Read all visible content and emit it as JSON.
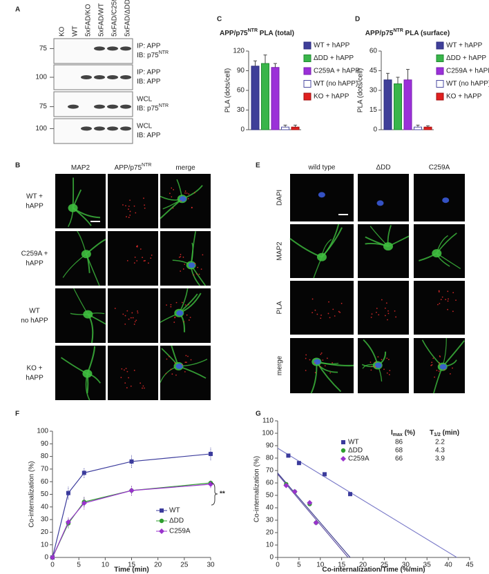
{
  "panel_labels": [
    "A",
    "B",
    "C",
    "D",
    "E",
    "F",
    "G"
  ],
  "blot": {
    "lanes": [
      "KO",
      "WT",
      "5xFAD/KO",
      "5xFAD/WT",
      "5xFAD/C259A",
      "5xFAD/ΔDD"
    ],
    "rows": [
      {
        "mw": 75,
        "line1": "IP: APP",
        "line2": [
          "IB: p75",
          "NTR"
        ]
      },
      {
        "mw": 100,
        "line1": "IP: APP",
        "line2": [
          "IB: APP"
        ]
      },
      {
        "mw": 75,
        "line1": "WCL",
        "line2": [
          "IB: p75",
          "NTR"
        ]
      },
      {
        "mw": 100,
        "line1": "WCL",
        "line2": [
          "IB: APP"
        ]
      }
    ]
  },
  "microscopy_B": {
    "headers": [
      [
        "MAP2"
      ],
      [
        "APP/p75",
        "NTR"
      ],
      [
        "merge"
      ]
    ],
    "rows": [
      [
        "WT +",
        "hAPP"
      ],
      [
        "C259A +",
        "hAPP"
      ],
      [
        "WT",
        "no hAPP"
      ],
      [
        "KO +",
        "hAPP"
      ]
    ]
  },
  "microscopy_E": {
    "headers": [
      "wild type",
      "ΔDD",
      "C259A"
    ],
    "rows": [
      "DAPI",
      "MAP2",
      "PLA",
      "merge"
    ]
  },
  "chart_data": [
    {
      "type": "bar",
      "title": [
        "APP/p75",
        "NTR",
        " PLA (total)"
      ],
      "ylabel": "PLA (dots/cell)",
      "categories": [
        "WT + hAPP",
        "ΔDD + hAPP",
        "C259A + hAPP",
        "WT (no hAPP)",
        "KO + hAPP"
      ],
      "values": [
        97,
        101,
        95,
        4,
        4
      ],
      "errors": [
        8,
        13,
        6,
        3,
        3
      ],
      "colors": [
        "#3f3f99",
        "#39b54a",
        "#9b30d8",
        "#ffffff",
        "#e0201f"
      ],
      "edgecolors": [
        "#2b2b80",
        "#1f8a30",
        "#7a20b0",
        "#4a4aa0",
        "#a01010"
      ],
      "ylim": [
        0,
        120
      ],
      "yticks": [
        0,
        30,
        60,
        90,
        120
      ]
    },
    {
      "type": "bar",
      "title": [
        "APP/p75",
        "NTR",
        " PLA (surface)"
      ],
      "ylabel": "PLA (dots/cell)",
      "categories": [
        "WT + hAPP",
        "ΔDD + hAPP",
        "C259A + hAPP",
        "WT (no hAPP)",
        "KO + hAPP"
      ],
      "values": [
        38,
        35,
        38,
        2,
        2
      ],
      "errors": [
        5,
        5,
        8,
        1.5,
        1
      ],
      "colors": [
        "#3f3f99",
        "#39b54a",
        "#9b30d8",
        "#ffffff",
        "#e0201f"
      ],
      "edgecolors": [
        "#2b2b80",
        "#1f8a30",
        "#7a20b0",
        "#4a4aa0",
        "#a01010"
      ],
      "ylim": [
        0,
        60
      ],
      "yticks": [
        0,
        15,
        30,
        45,
        60
      ]
    },
    {
      "type": "line",
      "xlabel": "Time (min)",
      "ylabel": "Co-internalization (%)",
      "x": [
        0,
        3,
        6,
        15,
        30
      ],
      "series": [
        {
          "name": "WT",
          "color": "#3b3b9c",
          "marker": "square",
          "values": [
            0,
            51,
            67,
            76,
            82
          ],
          "errors": [
            0,
            5,
            4,
            5,
            5
          ]
        },
        {
          "name": "ΔDD",
          "color": "#2e9e2e",
          "marker": "circle",
          "values": [
            0,
            27,
            44,
            53,
            59
          ],
          "errors": [
            0,
            4,
            4,
            4,
            2
          ]
        },
        {
          "name": "C259A",
          "color": "#9933cc",
          "marker": "diamond",
          "values": [
            0,
            28,
            43,
            53,
            58
          ],
          "errors": [
            0,
            4,
            5,
            4,
            3
          ]
        }
      ],
      "xlim": [
        0,
        30
      ],
      "xticks": [
        0,
        5,
        10,
        15,
        20,
        25,
        30
      ],
      "ylim": [
        0,
        100
      ],
      "yticks": [
        0,
        10,
        20,
        30,
        40,
        50,
        60,
        70,
        80,
        90,
        100
      ],
      "annotation": "**"
    },
    {
      "type": "scatter",
      "xlabel": "Co-internalization/Time (%/min)",
      "ylabel": "Co-internalization (%)",
      "table_header": [
        [
          "I",
          "max",
          " (%)"
        ],
        [
          "T",
          "1/2",
          " (min)"
        ]
      ],
      "series": [
        {
          "name": "WT",
          "color": "#3b3b9c",
          "marker": "square",
          "x": [
            2.5,
            5,
            11,
            17
          ],
          "values": [
            82,
            76,
            67,
            51
          ],
          "imax": 86,
          "t_half": 2.2
        },
        {
          "name": "ΔDD",
          "color": "#2e9e2e",
          "marker": "circle",
          "x": [
            2,
            4,
            7.5,
            9
          ],
          "values": [
            59,
            53,
            43,
            28
          ],
          "imax": 68,
          "t_half": 4.3
        },
        {
          "name": "C259A",
          "color": "#9933cc",
          "marker": "diamond",
          "x": [
            2,
            4,
            7.5,
            9
          ],
          "values": [
            58,
            53,
            44,
            28
          ],
          "imax": 66,
          "t_half": 3.9
        }
      ],
      "fits": [
        {
          "color": "#7a7ac8",
          "x": [
            0,
            42
          ],
          "values": [
            88,
            0
          ]
        },
        {
          "color": "#3a3a8a",
          "x": [
            0,
            17
          ],
          "values": [
            68,
            0
          ]
        },
        {
          "color": "#5a4aa0",
          "x": [
            0,
            16.5
          ],
          "values": [
            67,
            0
          ]
        }
      ],
      "xlim": [
        0,
        45
      ],
      "xticks": [
        0,
        5,
        10,
        15,
        20,
        25,
        30,
        35,
        40,
        45
      ],
      "ylim": [
        0,
        110
      ],
      "yticks": [
        0,
        10,
        20,
        30,
        40,
        50,
        60,
        70,
        80,
        90,
        100,
        110
      ]
    }
  ]
}
